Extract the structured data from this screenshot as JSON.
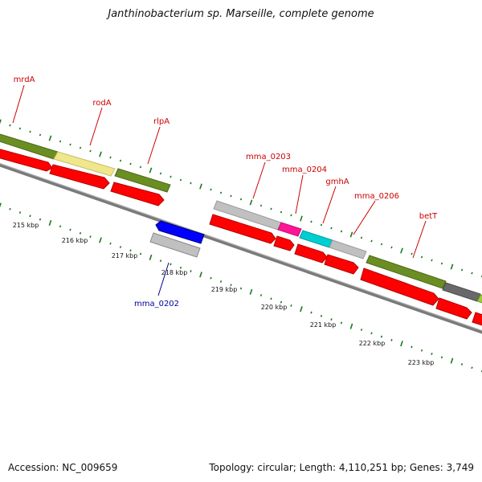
{
  "title": "Janthinobacterium sp. Marseille, complete genome",
  "accession": "Accession: NC_009659",
  "stats": "Topology: circular; Length: 4,110,251 bp; Genes: 3,749",
  "colors": {
    "tick": "#1a7a1a",
    "cds": "#ff0000",
    "olive": "#6b8e23",
    "khaki": "#f0e68c",
    "gray": "#c0c0c0",
    "darkgray": "#696969",
    "magenta": "#ff1493",
    "cyan": "#00ced1",
    "blue": "#0000ff",
    "label_red": "#cc0000",
    "label_blue": "#000099"
  },
  "kbp_labels": [
    "215 kbp",
    "216 kbp",
    "217 kbp",
    "218 kbp",
    "219 kbp",
    "220 kbp",
    "221 kbp",
    "222 kbp",
    "223 kbp"
  ],
  "gene_labels": [
    {
      "text": "mrdA",
      "color": "red"
    },
    {
      "text": "rodA",
      "color": "red"
    },
    {
      "text": "rlpA",
      "color": "red"
    },
    {
      "text": "mma_0203",
      "color": "red"
    },
    {
      "text": "mma_0204",
      "color": "red"
    },
    {
      "text": "gmhA",
      "color": "red"
    },
    {
      "text": "mma_0206",
      "color": "red"
    },
    {
      "text": "betT",
      "color": "red"
    },
    {
      "text": "mma_0202",
      "color": "blue"
    }
  ]
}
